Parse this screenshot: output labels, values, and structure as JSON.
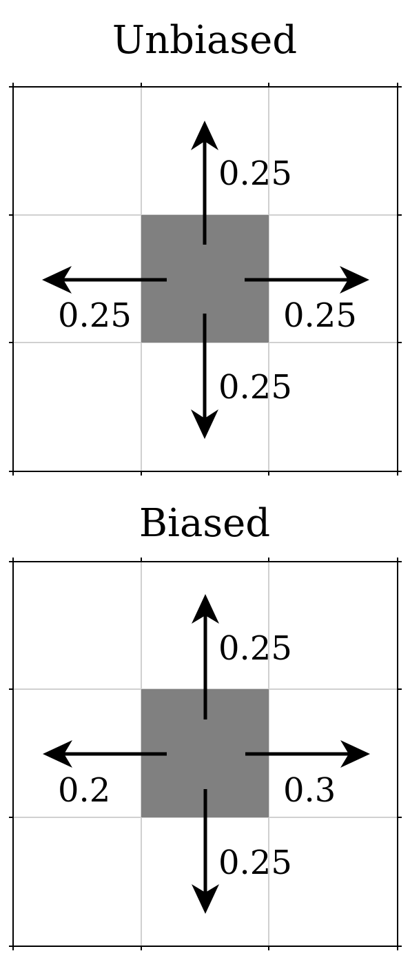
{
  "panels": [
    {
      "title": "Unbiased",
      "cell_color": "#808080",
      "moves": {
        "up": "0.25",
        "down": "0.25",
        "left": "0.25",
        "right": "0.25"
      }
    },
    {
      "title": "Biased",
      "cell_color": "#808080",
      "moves": {
        "up": "0.25",
        "down": "0.25",
        "left": "0.2",
        "right": "0.3"
      }
    }
  ]
}
